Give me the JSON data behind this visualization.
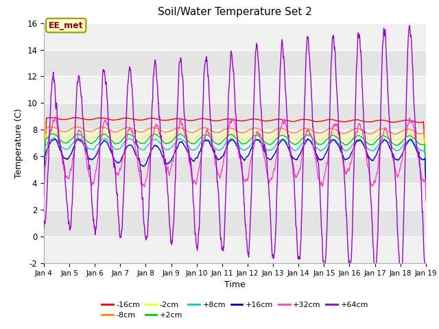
{
  "title": "Soil/Water Temperature Set 2",
  "xlabel": "Time",
  "ylabel": "Temperature (C)",
  "ylim": [
    -2,
    16
  ],
  "yticks": [
    -2,
    0,
    2,
    4,
    6,
    8,
    10,
    12,
    14,
    16
  ],
  "n_points": 1500,
  "start_day": 4,
  "end_day": 19,
  "series": {
    "-16cm": {
      "color": "#ff0000"
    },
    "-8cm": {
      "color": "#ff8800"
    },
    "-2cm": {
      "color": "#ffff00"
    },
    "+2cm": {
      "color": "#00cc00"
    },
    "+8cm": {
      "color": "#00cccc"
    },
    "+16cm": {
      "color": "#0000bb"
    },
    "+32cm": {
      "color": "#ff44cc"
    },
    "+64cm": {
      "color": "#9900cc"
    }
  },
  "annotation_text": "EE_met",
  "fig_facecolor": "#ffffff",
  "plot_facecolor": "#ffffff",
  "band_colors": [
    "#f0f0f0",
    "#e0e0e0"
  ]
}
